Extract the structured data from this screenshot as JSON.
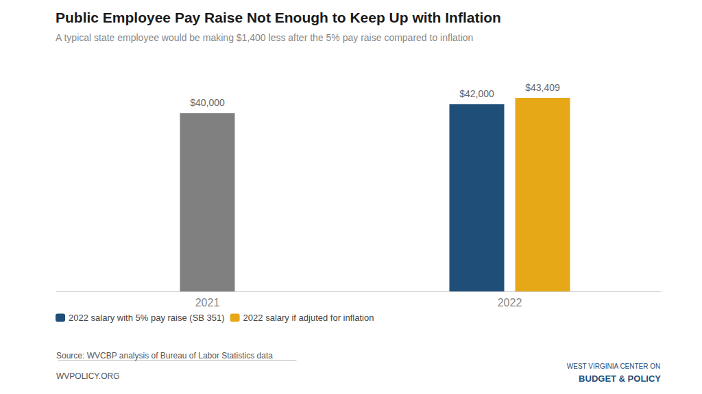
{
  "chart_data": {
    "type": "bar",
    "title": "Public Employee Pay Raise Not Enough to Keep Up with Inflation",
    "subtitle": "A typical state employee would be making $1,400 less after the 5% pay raise compared to inflation",
    "categories": [
      "2021",
      "2022"
    ],
    "series": [
      {
        "color": "#808080",
        "values": [
          40000,
          null
        ],
        "value_labels": [
          "$40,000",
          null
        ]
      },
      {
        "name": "2022 salary with 5% pay raise (SB 351)",
        "color": "#1f4e79",
        "values": [
          null,
          42000
        ],
        "value_labels": [
          null,
          "$42,000"
        ]
      },
      {
        "name": "2022 salary if adjuted for inflation",
        "color": "#e6a817",
        "values": [
          null,
          43409
        ],
        "value_labels": [
          null,
          "$43,409"
        ]
      }
    ],
    "ylim": [
      0,
      50000
    ],
    "grid": false,
    "legend": "bottom left",
    "data_labels": true,
    "tick_labels": "x",
    "annotations": [
      "Source: WVCBP analysis of Bureau of Labor Statistics data",
      "WVPOLICY.ORG",
      "WEST VIRGINIA CENTER ON",
      "BUDGET & POLICY"
    ]
  }
}
